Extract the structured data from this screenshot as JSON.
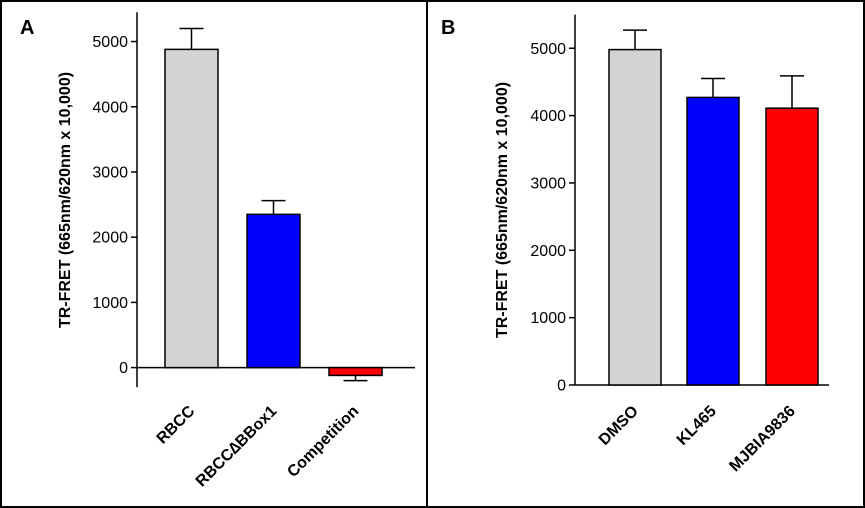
{
  "chart_data": [
    {
      "panel": "A",
      "type": "bar",
      "ylabel": "TR-FRET (665nm/620nm x 10,000)",
      "xlabel": "",
      "ylim": [
        -300,
        5450
      ],
      "yticks": [
        0,
        1000,
        2000,
        3000,
        4000,
        5000
      ],
      "zero_line": true,
      "categories": [
        "RBCC",
        "RBCC∆BBox1",
        "Competition"
      ],
      "values": [
        4880,
        2350,
        -120
      ],
      "errors": [
        320,
        210,
        80
      ],
      "colors": [
        "#d3d3d3",
        "#0000ff",
        "#ff0000"
      ]
    },
    {
      "panel": "B",
      "type": "bar",
      "ylabel": "TR-FRET (665nm/620nm x 10,000)",
      "xlabel": "",
      "ylim": [
        0,
        5500
      ],
      "yticks": [
        0,
        1000,
        2000,
        3000,
        4000,
        5000
      ],
      "zero_line": false,
      "categories": [
        "DMSO",
        "KL465",
        "MJBIA9836"
      ],
      "values": [
        4980,
        4270,
        4110
      ],
      "errors": [
        290,
        280,
        480
      ],
      "colors": [
        "#d3d3d3",
        "#0000ff",
        "#ff0000"
      ]
    }
  ]
}
